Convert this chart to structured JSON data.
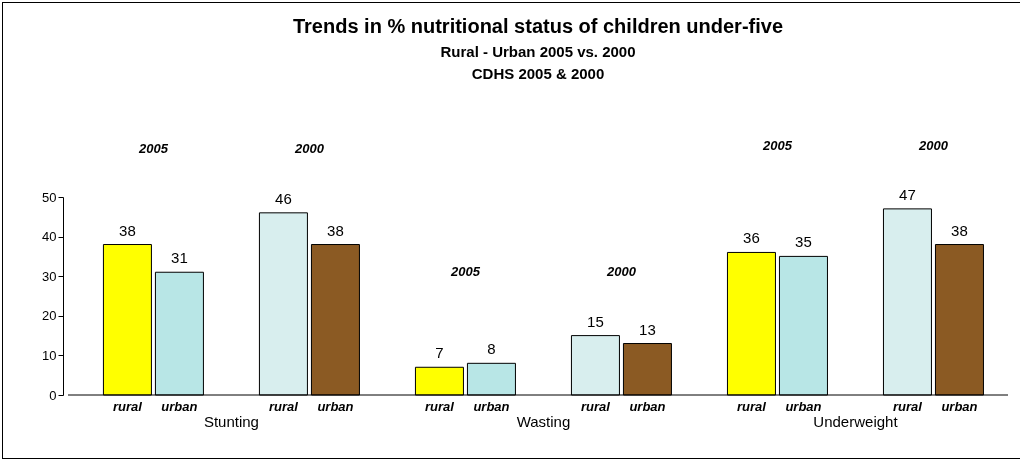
{
  "chart_data": {
    "type": "bar",
    "title": "Trends in % nutritional status of children under-five",
    "subtitle": "Rural - Urban 2005 vs. 2000\nCDHS 2005 & 2000",
    "categories": [
      "rural",
      "urban",
      "rural",
      "urban",
      "rural",
      "urban",
      "rural",
      "urban",
      "rural",
      "urban",
      "rural",
      "urban"
    ],
    "values": [
      38,
      31,
      46,
      38,
      7,
      8,
      15,
      13,
      36,
      35,
      47,
      38
    ],
    "colors": [
      "#ffff00",
      "#b8e6e6",
      "#d8eeee",
      "#8b5a23",
      "#ffff00",
      "#b8e6e6",
      "#d8eeee",
      "#8b5a23",
      "#ffff00",
      "#b8e6e6",
      "#d8eeee",
      "#8b5a23"
    ],
    "data_labels": true,
    "annotations": [
      "2005",
      "2000",
      "2005",
      "2000",
      "2005",
      "2000",
      "Stunting",
      "Wasting",
      "Underweight"
    ],
    "ylim": [
      0,
      50
    ],
    "yticks": [
      0,
      10,
      20,
      30,
      40,
      50
    ],
    "grid": false,
    "legend": false
  }
}
